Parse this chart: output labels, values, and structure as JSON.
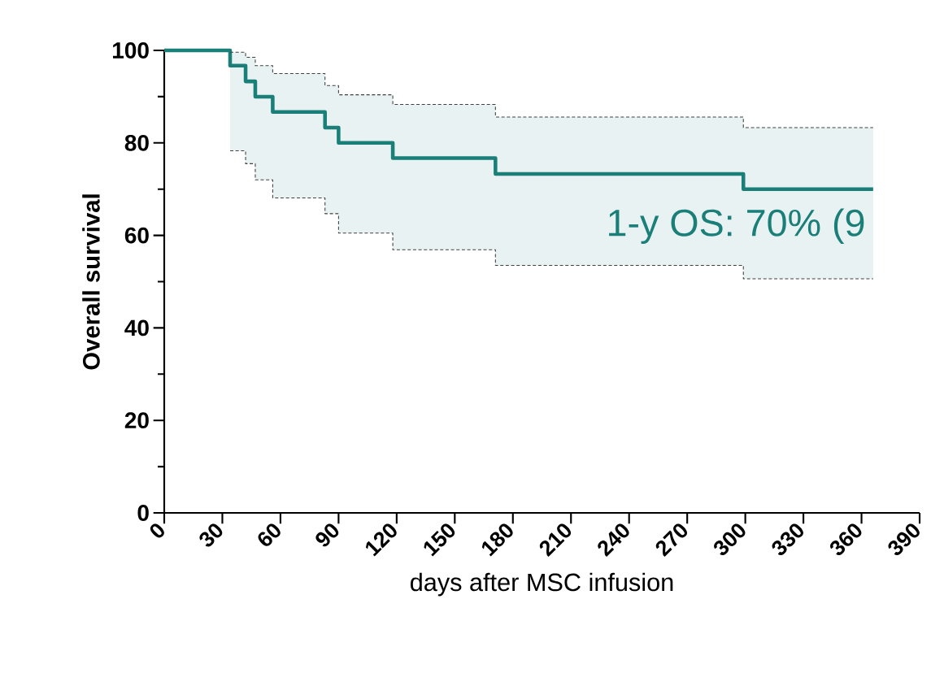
{
  "chart_data": {
    "type": "step",
    "xlabel": "days after MSC infusion",
    "ylabel": "Overall survival",
    "series": [
      {
        "color": "#1a7f78",
        "x": [
          0,
          34,
          42,
          47,
          56,
          83,
          90,
          118,
          171,
          299,
          366
        ],
        "values": [
          100,
          96.7,
          93.3,
          90,
          86.7,
          83.3,
          80,
          76.7,
          73.3,
          70,
          70
        ],
        "upper": [
          null,
          99.6,
          98.5,
          96.7,
          95,
          92.4,
          90.4,
          88.3,
          85.6,
          83.3,
          83.3
        ],
        "lower": [
          null,
          78.3,
          75.5,
          72,
          68.1,
          64.7,
          60.5,
          56.9,
          53.5,
          50.6,
          50.6
        ]
      },
      {
        "color": "#404040",
        "line_style": "dashed",
        "x": [
          34,
          42,
          47,
          56,
          83,
          90,
          118,
          171,
          299,
          366
        ],
        "values": [
          99.6,
          98.5,
          96.7,
          95,
          92.4,
          90.4,
          88.3,
          85.6,
          83.3,
          83.3
        ]
      },
      {
        "color": "#404040",
        "line_style": "dashed",
        "x": [
          34,
          42,
          47,
          56,
          83,
          90,
          118,
          171,
          299,
          366
        ],
        "values": [
          78.3,
          75.5,
          72,
          68.1,
          64.7,
          60.5,
          56.9,
          53.5,
          50.6,
          50.6
        ]
      }
    ],
    "xlim": [
      0,
      390
    ],
    "ylim": [
      0,
      100
    ],
    "xticks": [
      0,
      30,
      60,
      90,
      120,
      150,
      180,
      210,
      240,
      270,
      300,
      330,
      360,
      390
    ],
    "yticks": [
      0,
      20,
      40,
      60,
      80,
      100
    ],
    "annotations": [
      "1-y OS: 70% (9"
    ]
  }
}
